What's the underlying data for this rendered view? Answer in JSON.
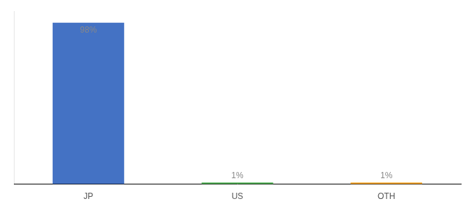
{
  "chart_data": {
    "type": "bar",
    "categories": [
      "JP",
      "US",
      "OTH"
    ],
    "values": [
      98,
      1,
      1
    ],
    "value_labels": [
      "98%",
      "1%",
      "1%"
    ],
    "colors": [
      "#4472c4",
      "#4caf50",
      "#ffa726"
    ],
    "ylim": [
      0,
      105
    ],
    "grid": false,
    "legend": false,
    "data_labels": true,
    "tick_labels": "x"
  }
}
